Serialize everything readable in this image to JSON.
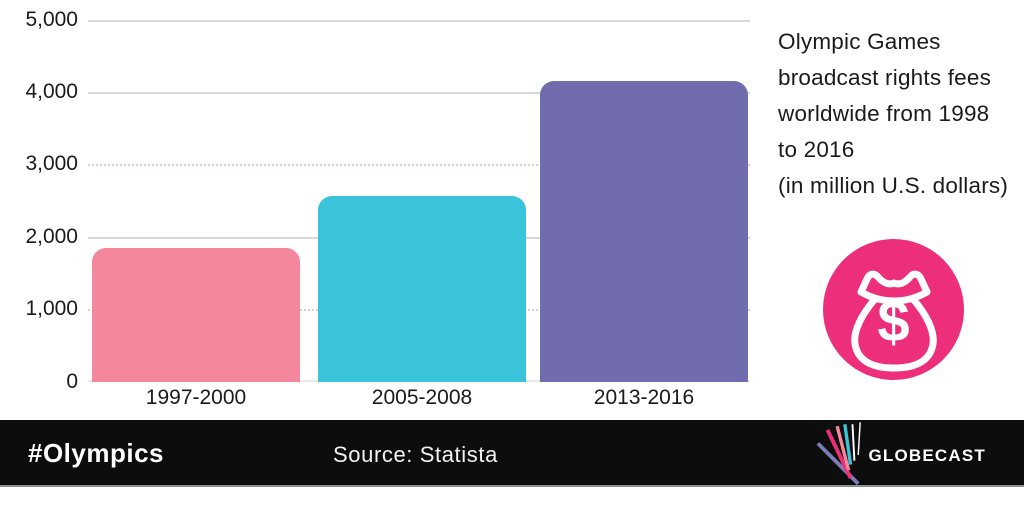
{
  "chart_data": {
    "type": "bar",
    "title": "Olympic Games broadcast rights fees worldwide from 1998 to 2016 (in million U.S. dollars)",
    "categories": [
      "1997-2000",
      "2005-2008",
      "2013-2016"
    ],
    "values": [
      1845,
      2570,
      4157
    ],
    "bar_colors": [
      "#F5879C",
      "#3AC4DA",
      "#706CAE"
    ],
    "xlabel": "",
    "ylabel": "",
    "ylim": [
      0,
      5000
    ],
    "ytick_labels": [
      "5,000",
      "4,000",
      "3,000",
      "2,000",
      "1,000",
      "0"
    ],
    "grid": "horizontal; solid lines at 0/2000/4000/5000, dotted at 1000/3000",
    "legend": "none",
    "background": "#FFFFFF"
  },
  "annotation": {
    "text": "Olympic Games\nbroadcast rights fees\nworldwide from 1998\nto 2016\n(in million U.S. dollars)"
  },
  "money_badge": {
    "circle_color": "#ED2E7B",
    "glyph_color": "#FFFFFF",
    "dollar_sign": "$"
  },
  "footer": {
    "background": "#0D0D0D",
    "hashtag": "#Olympics",
    "source": "Source: Statista",
    "brand": "GLOBECAST",
    "fan_line_colors": [
      "#7D7DB8",
      "#ED2F77",
      "#F5879C",
      "#3AC4DA",
      "#FFFFFF",
      "#FFFFFF"
    ]
  }
}
